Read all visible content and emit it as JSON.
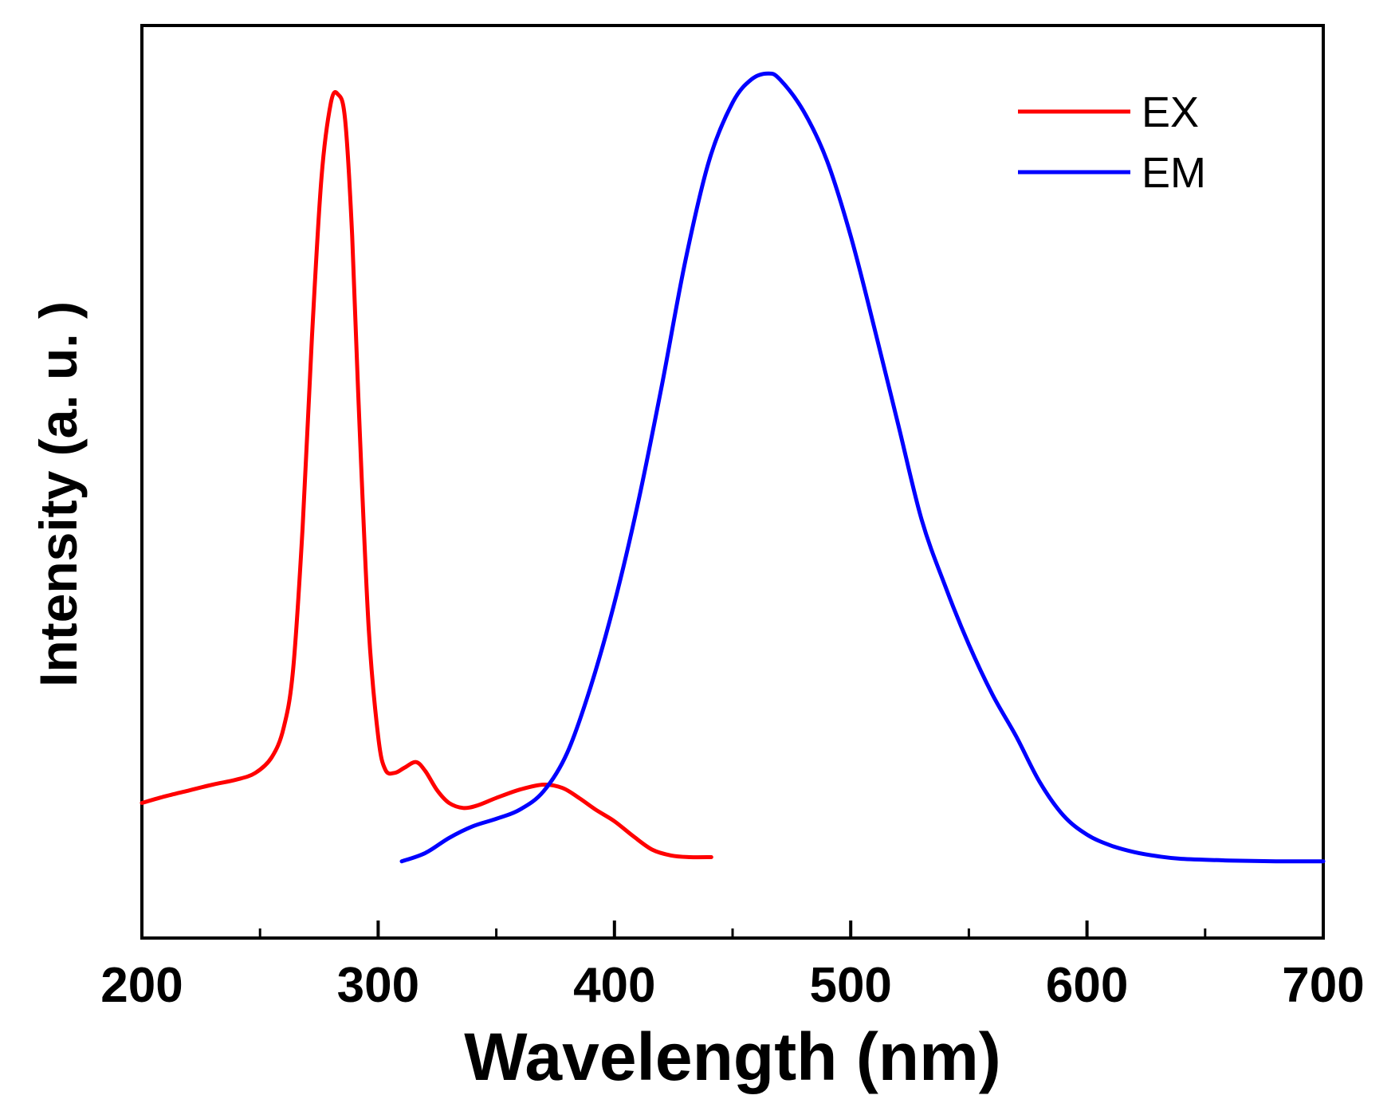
{
  "chart_data": {
    "type": "line",
    "title": "",
    "xlabel": "Wavelength (nm)",
    "ylabel": "Intensity (a. u. )",
    "xlim": [
      200,
      700
    ],
    "ylim": [
      0,
      100
    ],
    "xticks": [
      200,
      300,
      400,
      500,
      600,
      700
    ],
    "xtick_labels": [
      "200",
      "300",
      "400",
      "500",
      "600",
      "700"
    ],
    "minor_xticks": [
      250,
      350,
      450,
      550,
      650
    ],
    "grid": false,
    "legend_position": "top-right",
    "series": [
      {
        "name": "EX",
        "color": "#ff0000",
        "x": [
          200,
          210,
          220,
          230,
          240,
          248,
          255,
          260,
          264,
          268,
          272,
          276,
          280,
          283,
          286,
          289,
          292,
          296,
          300,
          303,
          307,
          311,
          316,
          320,
          325,
          330,
          336,
          342,
          350,
          360,
          370,
          378,
          385,
          392,
          400,
          408,
          416,
          424,
          432,
          441
        ],
        "y": [
          12,
          12.8,
          13.5,
          14.2,
          14.8,
          15.6,
          17.5,
          21,
          28,
          45,
          68,
          87,
          96,
          97,
          94,
          80,
          58,
          33,
          20,
          16,
          15.6,
          16.2,
          16.9,
          15.8,
          13.5,
          12,
          11.4,
          11.7,
          12.6,
          13.6,
          14.2,
          13.8,
          12.6,
          11.2,
          9.8,
          8,
          6.4,
          5.7,
          5.5,
          5.5
        ],
        "legend_label": "EX"
      },
      {
        "name": "EM",
        "color": "#0000ff",
        "x": [
          310,
          320,
          330,
          340,
          350,
          360,
          370,
          380,
          390,
          400,
          410,
          420,
          430,
          440,
          450,
          458,
          465,
          470,
          480,
          490,
          500,
          510,
          520,
          530,
          540,
          550,
          560,
          570,
          580,
          590,
          600,
          610,
          620,
          630,
          640,
          660,
          680,
          700
        ],
        "y": [
          5,
          6,
          7.8,
          9.2,
          10.1,
          11.2,
          13.4,
          18,
          26,
          36,
          48,
          62,
          77,
          89,
          96,
          98.8,
          99.5,
          98.8,
          95,
          89,
          80,
          69,
          57.5,
          46,
          38,
          31,
          25,
          20,
          14.5,
          10.5,
          8.2,
          6.9,
          6.1,
          5.6,
          5.3,
          5.1,
          5.0,
          5.0
        ],
        "legend_label": "EM"
      }
    ]
  }
}
